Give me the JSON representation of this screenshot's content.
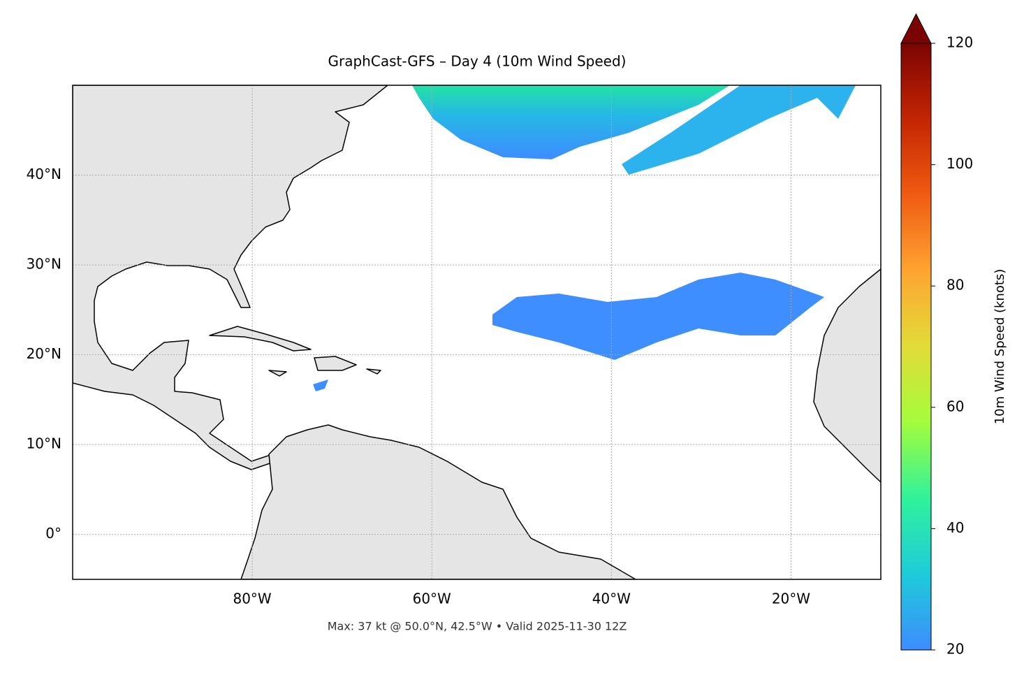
{
  "chart_data": {
    "type": "map",
    "title": "GraphCast-GFS – Day 4 (10m Wind Speed)",
    "footer": "Max: 37 kt @ 50.0°N, 42.5°W • Valid 2025-11-30 12Z",
    "xlim": [
      -100,
      -10
    ],
    "ylim": [
      -5,
      50
    ],
    "xticks": [
      {
        "value": -80,
        "label": "80°W"
      },
      {
        "value": -60,
        "label": "60°W"
      },
      {
        "value": -40,
        "label": "40°W"
      },
      {
        "value": -20,
        "label": "20°W"
      }
    ],
    "yticks": [
      {
        "value": 0,
        "label": "0°"
      },
      {
        "value": 10,
        "label": "10°N"
      },
      {
        "value": 20,
        "label": "20°N"
      },
      {
        "value": 30,
        "label": "30°N"
      },
      {
        "value": 40,
        "label": "40°N"
      }
    ],
    "grid": true,
    "colorbar": {
      "label": "10m Wind Speed (knots)",
      "lim": [
        20,
        120
      ],
      "ticks": [
        20,
        40,
        60,
        80,
        100,
        120
      ],
      "colors": [
        "#3e8cff",
        "#1ecbd9",
        "#2ff29a",
        "#a4fc3c",
        "#e2dc38",
        "#fea431",
        "#f05b12",
        "#c42503",
        "#7a0403"
      ]
    }
  }
}
